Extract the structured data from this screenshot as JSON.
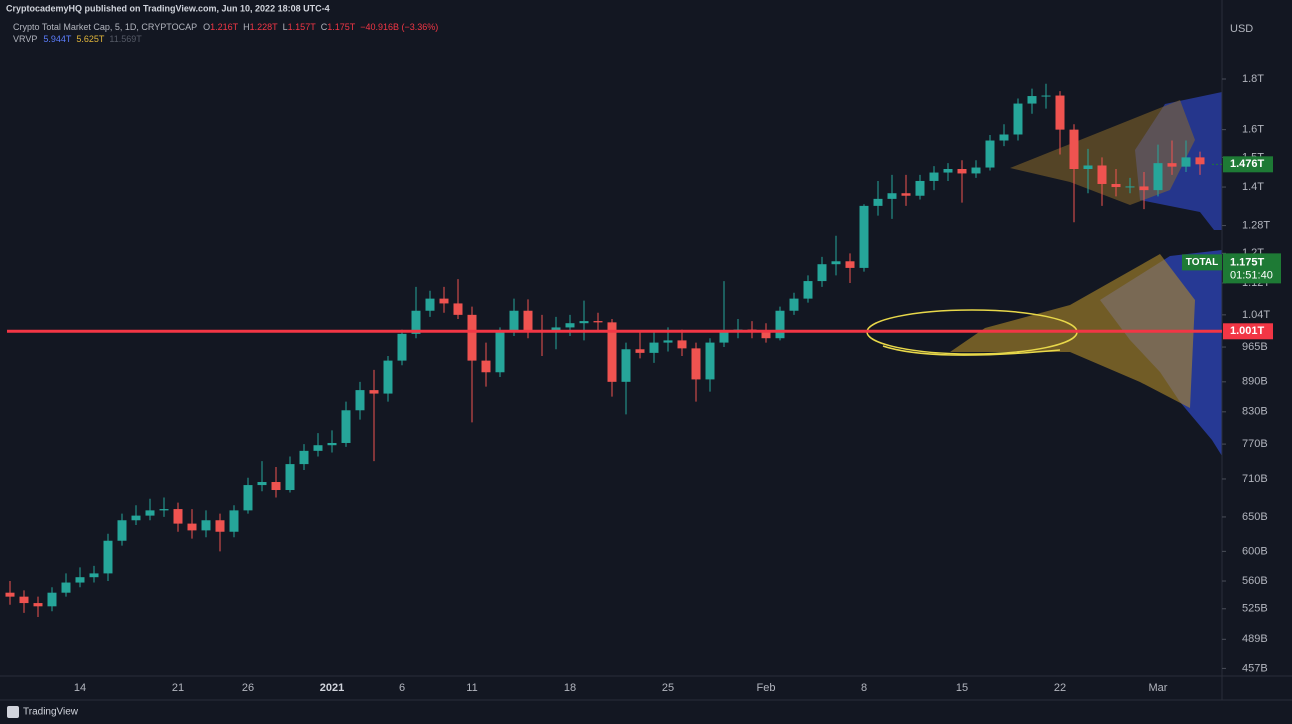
{
  "header": {
    "publisher": "CryptocademyHQ published on TradingView.com, Jun 10, 2022 18:08 UTC-4",
    "symbol": "Crypto Total Market Cap, 5, 1D, CRYPTOCAP",
    "ohlc_labels": [
      "O",
      "H",
      "L",
      "C"
    ],
    "ohlc_values": [
      "1.216T",
      "1.228T",
      "1.157T",
      "1.175T"
    ],
    "change": "−40.916B (−3.36%)",
    "indicator": "VRVP",
    "indicator_values": [
      "5.944T",
      "5.625T",
      "11.569T"
    ]
  },
  "axis_unit": "USD",
  "footer": "TradingView",
  "chart_data": {
    "type": "candlestick",
    "log": true,
    "grid": false,
    "up_color": "#26a69a",
    "down_color": "#ef5350",
    "categories": [
      null,
      null,
      null,
      null,
      null,
      "14",
      null,
      null,
      null,
      null,
      null,
      null,
      "21",
      null,
      null,
      null,
      null,
      "26",
      null,
      null,
      null,
      null,
      null,
      "2021",
      null,
      null,
      null,
      null,
      "6",
      null,
      null,
      null,
      null,
      "11",
      null,
      null,
      null,
      null,
      null,
      null,
      "18",
      null,
      null,
      null,
      null,
      null,
      null,
      "25",
      null,
      null,
      null,
      null,
      null,
      null,
      "Feb",
      null,
      null,
      null,
      null,
      null,
      null,
      "8",
      null,
      null,
      null,
      null,
      null,
      null,
      "15",
      null,
      null,
      null,
      null,
      null,
      null,
      "22",
      null,
      null,
      null,
      null,
      null,
      null,
      "Mar",
      null,
      null,
      null
    ],
    "ohlc": [
      [
        545,
        560,
        530,
        540
      ],
      [
        540,
        548,
        520,
        532
      ],
      [
        532,
        540,
        515,
        528
      ],
      [
        528,
        552,
        522,
        545
      ],
      [
        545,
        570,
        540,
        558
      ],
      [
        558,
        578,
        552,
        565
      ],
      [
        565,
        580,
        558,
        570
      ],
      [
        570,
        625,
        560,
        615
      ],
      [
        615,
        655,
        608,
        645
      ],
      [
        645,
        668,
        638,
        652
      ],
      [
        652,
        678,
        645,
        660
      ],
      [
        660,
        680,
        650,
        662
      ],
      [
        662,
        672,
        628,
        640
      ],
      [
        640,
        662,
        618,
        630
      ],
      [
        630,
        660,
        620,
        645
      ],
      [
        645,
        655,
        600,
        628
      ],
      [
        628,
        668,
        620,
        660
      ],
      [
        660,
        712,
        655,
        700
      ],
      [
        700,
        740,
        690,
        705
      ],
      [
        705,
        730,
        680,
        692
      ],
      [
        692,
        748,
        688,
        735
      ],
      [
        735,
        770,
        725,
        758
      ],
      [
        758,
        790,
        748,
        768
      ],
      [
        768,
        795,
        755,
        772
      ],
      [
        772,
        850,
        765,
        833
      ],
      [
        833,
        890,
        815,
        873
      ],
      [
        873,
        915,
        740,
        866
      ],
      [
        866,
        945,
        850,
        935
      ],
      [
        935,
        1005,
        925,
        995
      ],
      [
        995,
        1110,
        985,
        1050
      ],
      [
        1050,
        1100,
        1035,
        1080
      ],
      [
        1080,
        1110,
        1045,
        1068
      ],
      [
        1068,
        1130,
        1030,
        1040
      ],
      [
        1040,
        1060,
        810,
        935
      ],
      [
        935,
        975,
        880,
        910
      ],
      [
        910,
        1010,
        900,
        1000
      ],
      [
        1000,
        1080,
        990,
        1050
      ],
      [
        1050,
        1078,
        985,
        1002
      ],
      [
        1002,
        1040,
        945,
        1000
      ],
      [
        1000,
        1035,
        960,
        1010
      ],
      [
        1010,
        1040,
        990,
        1020
      ],
      [
        1020,
        1075,
        980,
        1025
      ],
      [
        1025,
        1045,
        1000,
        1022
      ],
      [
        1022,
        1030,
        860,
        890
      ],
      [
        890,
        975,
        825,
        960
      ],
      [
        960,
        1000,
        940,
        952
      ],
      [
        952,
        1000,
        930,
        975
      ],
      [
        975,
        1010,
        955,
        980
      ],
      [
        980,
        1005,
        945,
        962
      ],
      [
        962,
        975,
        850,
        895
      ],
      [
        895,
        985,
        870,
        975
      ],
      [
        975,
        1125,
        965,
        1000
      ],
      [
        1000,
        1030,
        985,
        1005
      ],
      [
        1005,
        1025,
        985,
        1000
      ],
      [
        1000,
        1020,
        975,
        985
      ],
      [
        985,
        1060,
        980,
        1050
      ],
      [
        1050,
        1095,
        1040,
        1080
      ],
      [
        1080,
        1140,
        1070,
        1125
      ],
      [
        1125,
        1190,
        1110,
        1170
      ],
      [
        1170,
        1250,
        1140,
        1178
      ],
      [
        1178,
        1200,
        1120,
        1160
      ],
      [
        1160,
        1345,
        1150,
        1340
      ],
      [
        1340,
        1420,
        1310,
        1362
      ],
      [
        1362,
        1440,
        1300,
        1380
      ],
      [
        1380,
        1440,
        1340,
        1372
      ],
      [
        1372,
        1440,
        1360,
        1420
      ],
      [
        1420,
        1470,
        1390,
        1448
      ],
      [
        1448,
        1480,
        1420,
        1460
      ],
      [
        1460,
        1490,
        1350,
        1445
      ],
      [
        1445,
        1490,
        1430,
        1465
      ],
      [
        1465,
        1580,
        1455,
        1560
      ],
      [
        1560,
        1620,
        1540,
        1582
      ],
      [
        1582,
        1720,
        1560,
        1700
      ],
      [
        1700,
        1760,
        1660,
        1730
      ],
      [
        1730,
        1780,
        1680,
        1732
      ],
      [
        1732,
        1750,
        1510,
        1600
      ],
      [
        1600,
        1620,
        1290,
        1460
      ],
      [
        1460,
        1530,
        1380,
        1472
      ],
      [
        1472,
        1500,
        1340,
        1410
      ],
      [
        1410,
        1460,
        1370,
        1400
      ],
      [
        1400,
        1430,
        1380,
        1402
      ],
      [
        1402,
        1450,
        1330,
        1390
      ],
      [
        1390,
        1545,
        1370,
        1480
      ],
      [
        1480,
        1560,
        1440,
        1468
      ],
      [
        1468,
        1560,
        1450,
        1500
      ],
      [
        1500,
        1520,
        1440,
        1476
      ]
    ],
    "ylim": [
      449,
      2163
    ],
    "yticks": [
      {
        "value": 1800,
        "label": "1.8T"
      },
      {
        "value": 1600,
        "label": "1.6T"
      },
      {
        "value": 1500,
        "label": "1.5T"
      },
      {
        "value": 1400,
        "label": "1.4T"
      },
      {
        "value": 1280,
        "label": "1.28T"
      },
      {
        "value": 1200,
        "label": "1.2T"
      },
      {
        "value": 1120,
        "label": "1.12T"
      },
      {
        "value": 1040,
        "label": "1.04T"
      },
      {
        "value": 965,
        "label": "965B"
      },
      {
        "value": 890,
        "label": "890B"
      },
      {
        "value": 830,
        "label": "830B"
      },
      {
        "value": 770,
        "label": "770B"
      },
      {
        "value": 710,
        "label": "710B"
      },
      {
        "value": 650,
        "label": "650B"
      },
      {
        "value": 600,
        "label": "600B"
      },
      {
        "value": 560,
        "label": "560B"
      },
      {
        "value": 525,
        "label": "525B"
      },
      {
        "value": 489,
        "label": "489B"
      },
      {
        "value": 457,
        "label": "457B"
      }
    ],
    "last_price": {
      "value": 1476,
      "label": "1.476T",
      "color": "#1e7a35"
    },
    "total": {
      "name": "TOTAL",
      "value": 1175,
      "label": "1.175T",
      "countdown": "01:51:40",
      "color": "#1e7a35"
    },
    "hline": {
      "value": 1001,
      "label": "1.001T",
      "color": "#f23645"
    }
  }
}
